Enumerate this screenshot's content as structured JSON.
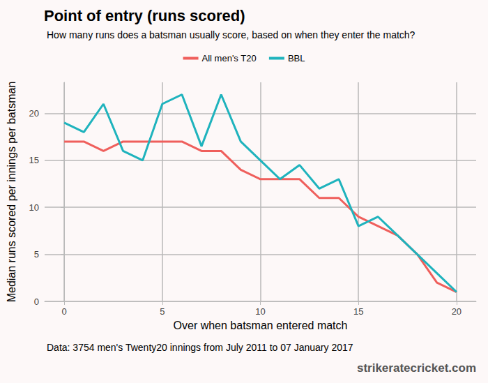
{
  "chart_data": {
    "type": "line",
    "title": "Point of entry (runs scored)",
    "subtitle": "How many runs does a batsman usually score, based on when they enter the match?",
    "x_label": "Over when batsman entered match",
    "y_label": "Median runs scored per innings per batsman",
    "caption": "Data: 3754 men's Twenty20 innings from July 2011 to 07 January 2017",
    "source": "strikeratecricket.com",
    "x": [
      0,
      1,
      2,
      3,
      4,
      5,
      6,
      7,
      8,
      9,
      10,
      11,
      12,
      13,
      14,
      15,
      16,
      17,
      18,
      19,
      20
    ],
    "series": [
      {
        "name": "All men's T20",
        "color": "#ef5f5c",
        "values": [
          17,
          17,
          16,
          17,
          17,
          17,
          17,
          16,
          16,
          14,
          13,
          13,
          13,
          11,
          11,
          9,
          8,
          7,
          5,
          2,
          1
        ]
      },
      {
        "name": "BBL",
        "color": "#1fb3bd",
        "values": [
          19,
          18,
          21,
          16,
          15,
          21,
          22,
          16.5,
          22,
          17,
          15,
          13,
          14.5,
          12,
          13,
          8,
          9,
          7,
          5,
          3,
          1
        ]
      }
    ],
    "xlim": [
      -1,
      21
    ],
    "xticks": [
      0,
      5,
      10,
      15,
      20
    ],
    "ylim": [
      0,
      23.3
    ],
    "yticks": [
      0,
      5,
      10,
      15,
      20
    ],
    "grid": true,
    "legend": "top"
  }
}
